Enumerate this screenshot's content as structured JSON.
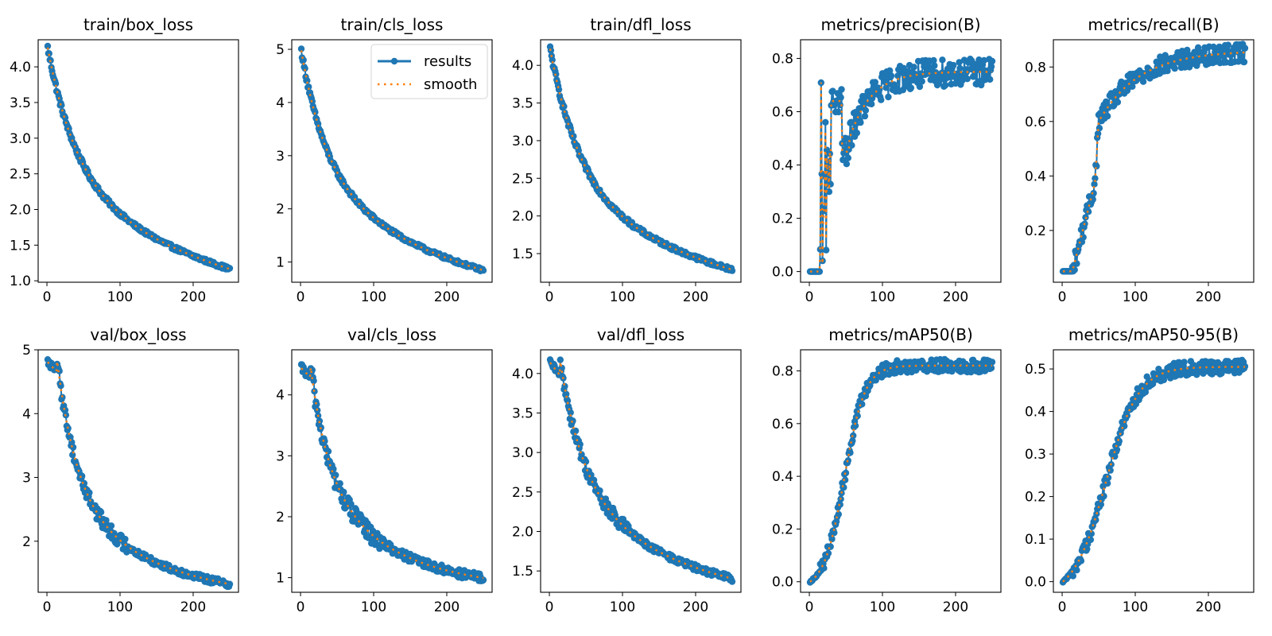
{
  "figure": {
    "rows": 2,
    "cols": 5
  },
  "colors": {
    "results": "#1f77b4",
    "smooth": "#ff7f0e",
    "axis": "#000000"
  },
  "legend": {
    "panel": 1,
    "placement": "upper-right",
    "entries": [
      {
        "label": "results",
        "style": "line-marker"
      },
      {
        "label": "smooth",
        "style": "dotted"
      }
    ]
  },
  "chart_data": [
    {
      "type": "line",
      "title": "train/box_loss",
      "xlabel": "",
      "ylabel": "",
      "xlim": [
        -12,
        262
      ],
      "ylim": [
        0.98,
        4.38
      ],
      "xticks": [
        0,
        100,
        200
      ],
      "xtick_labels": [
        "0",
        "100",
        "200"
      ],
      "yticks": [
        1.0,
        1.5,
        2.0,
        2.5,
        3.0,
        3.5,
        4.0
      ],
      "ytick_labels": [
        "1.0",
        "1.5",
        "2.0",
        "2.5",
        "3.0",
        "3.5",
        "4.0"
      ],
      "x_range": [
        1,
        250
      ],
      "curve": {
        "kind": "decay",
        "start": 4.27,
        "end": 1.16,
        "tau": 38,
        "noise": 0.04,
        "tail": 0.55
      },
      "series": [
        {
          "name": "results"
        },
        {
          "name": "smooth"
        }
      ]
    },
    {
      "type": "line",
      "title": "train/cls_loss",
      "xlabel": "",
      "ylabel": "",
      "xlim": [
        -12,
        262
      ],
      "ylim": [
        0.62,
        5.18
      ],
      "xticks": [
        0,
        100,
        200
      ],
      "xtick_labels": [
        "0",
        "100",
        "200"
      ],
      "yticks": [
        1,
        2,
        3,
        4,
        5
      ],
      "ytick_labels": [
        "1",
        "2",
        "3",
        "4",
        "5"
      ],
      "x_range": [
        1,
        250
      ],
      "curve": {
        "kind": "decay",
        "start": 4.98,
        "end": 0.84,
        "tau": 32,
        "noise": 0.05,
        "tail": 0.5
      },
      "series": [
        {
          "name": "results"
        },
        {
          "name": "smooth"
        }
      ]
    },
    {
      "type": "line",
      "title": "train/dfl_loss",
      "xlabel": "",
      "ylabel": "",
      "xlim": [
        -12,
        262
      ],
      "ylim": [
        1.12,
        4.34
      ],
      "xticks": [
        0,
        100,
        200
      ],
      "xtick_labels": [
        "0",
        "100",
        "200"
      ],
      "yticks": [
        1.5,
        2.0,
        2.5,
        3.0,
        3.5,
        4.0
      ],
      "ytick_labels": [
        "1.5",
        "2.0",
        "2.5",
        "3.0",
        "3.5",
        "4.0"
      ],
      "x_range": [
        1,
        250
      ],
      "curve": {
        "kind": "decay",
        "start": 4.22,
        "end": 1.28,
        "tau": 40,
        "noise": 0.04,
        "tail": 0.6
      },
      "series": [
        {
          "name": "results"
        },
        {
          "name": "smooth"
        }
      ]
    },
    {
      "type": "line",
      "title": "metrics/precision(B)",
      "xlabel": "",
      "ylabel": "",
      "xlim": [
        -12,
        262
      ],
      "ylim": [
        -0.04,
        0.87
      ],
      "xticks": [
        0,
        100,
        200
      ],
      "xtick_labels": [
        "0",
        "100",
        "200"
      ],
      "yticks": [
        0.0,
        0.2,
        0.4,
        0.6,
        0.8
      ],
      "ytick_labels": [
        "0.0",
        "0.2",
        "0.4",
        "0.6",
        "0.8"
      ],
      "x_range": [
        1,
        250
      ],
      "curve": {
        "kind": "precision",
        "plateau": 0.75,
        "noise": 0.04
      },
      "series": [
        {
          "name": "results"
        },
        {
          "name": "smooth"
        }
      ]
    },
    {
      "type": "line",
      "title": "metrics/recall(B)",
      "xlabel": "",
      "ylabel": "",
      "xlim": [
        -12,
        262
      ],
      "ylim": [
        0.01,
        0.9
      ],
      "xticks": [
        0,
        100,
        200
      ],
      "xtick_labels": [
        "0",
        "100",
        "200"
      ],
      "yticks": [
        0.2,
        0.4,
        0.6,
        0.8
      ],
      "ytick_labels": [
        "0.2",
        "0.4",
        "0.6",
        "0.8"
      ],
      "x_range": [
        1,
        250
      ],
      "curve": {
        "kind": "recall",
        "plateau": 0.86,
        "noise": 0.035
      },
      "series": [
        {
          "name": "results"
        },
        {
          "name": "smooth"
        }
      ]
    },
    {
      "type": "line",
      "title": "val/box_loss",
      "xlabel": "",
      "ylabel": "",
      "xlim": [
        -12,
        262
      ],
      "ylim": [
        1.2,
        5.0
      ],
      "xticks": [
        0,
        100,
        200
      ],
      "xtick_labels": [
        "0",
        "100",
        "200"
      ],
      "yticks": [
        2,
        3,
        4,
        5
      ],
      "ytick_labels": [
        "2",
        "3",
        "4",
        "5"
      ],
      "x_range": [
        1,
        250
      ],
      "curve": {
        "kind": "delayed-decay",
        "start": 4.82,
        "end": 1.3,
        "delay": 14,
        "tau": 26,
        "noise": 0.05,
        "tail": 0.55
      },
      "series": [
        {
          "name": "results"
        },
        {
          "name": "smooth"
        }
      ]
    },
    {
      "type": "line",
      "title": "val/cls_loss",
      "xlabel": "",
      "ylabel": "",
      "xlim": [
        -12,
        262
      ],
      "ylim": [
        0.76,
        4.74
      ],
      "xticks": [
        0,
        100,
        200
      ],
      "xtick_labels": [
        "0",
        "100",
        "200"
      ],
      "yticks": [
        1,
        2,
        3,
        4
      ],
      "ytick_labels": [
        "1",
        "2",
        "3",
        "4"
      ],
      "x_range": [
        1,
        250
      ],
      "curve": {
        "kind": "delayed-decay",
        "start": 4.45,
        "end": 0.97,
        "delay": 14,
        "tau": 22,
        "noise": 0.07,
        "tail": 0.45
      },
      "series": [
        {
          "name": "results"
        },
        {
          "name": "smooth"
        }
      ]
    },
    {
      "type": "line",
      "title": "val/dfl_loss",
      "xlabel": "",
      "ylabel": "",
      "xlim": [
        -12,
        262
      ],
      "ylim": [
        1.23,
        4.3
      ],
      "xticks": [
        0,
        100,
        200
      ],
      "xtick_labels": [
        "0",
        "100",
        "200"
      ],
      "yticks": [
        1.5,
        2.0,
        2.5,
        3.0,
        3.5,
        4.0
      ],
      "ytick_labels": [
        "1.5",
        "2.0",
        "2.5",
        "3.0",
        "3.5",
        "4.0"
      ],
      "x_range": [
        1,
        250
      ],
      "curve": {
        "kind": "delayed-decay",
        "start": 4.15,
        "end": 1.37,
        "delay": 15,
        "tau": 30,
        "noise": 0.04,
        "tail": 0.5
      },
      "series": [
        {
          "name": "results"
        },
        {
          "name": "smooth"
        }
      ]
    },
    {
      "type": "line",
      "title": "metrics/mAP50(B)",
      "xlabel": "",
      "ylabel": "",
      "xlim": [
        -12,
        262
      ],
      "ylim": [
        -0.04,
        0.88
      ],
      "xticks": [
        0,
        100,
        200
      ],
      "xtick_labels": [
        "0",
        "100",
        "200"
      ],
      "yticks": [
        0.0,
        0.2,
        0.4,
        0.6,
        0.8
      ],
      "ytick_labels": [
        "0.0",
        "0.2",
        "0.4",
        "0.6",
        "0.8"
      ],
      "x_range": [
        1,
        250
      ],
      "curve": {
        "kind": "sigmoid",
        "plateau": 0.82,
        "mid": 48,
        "width": 14,
        "noise": 0.025
      },
      "series": [
        {
          "name": "results"
        },
        {
          "name": "smooth"
        }
      ]
    },
    {
      "type": "line",
      "title": "metrics/mAP50-95(B)",
      "xlabel": "",
      "ylabel": "",
      "xlim": [
        -12,
        262
      ],
      "ylim": [
        -0.025,
        0.545
      ],
      "xticks": [
        0,
        100,
        200
      ],
      "xtick_labels": [
        "0",
        "100",
        "200"
      ],
      "yticks": [
        0.0,
        0.1,
        0.2,
        0.3,
        0.4,
        0.5
      ],
      "ytick_labels": [
        "0.0",
        "0.1",
        "0.2",
        "0.3",
        "0.4",
        "0.5"
      ],
      "x_range": [
        1,
        250
      ],
      "curve": {
        "kind": "sigmoid",
        "plateau": 0.505,
        "mid": 60,
        "width": 22,
        "noise": 0.017
      },
      "series": [
        {
          "name": "results"
        },
        {
          "name": "smooth"
        }
      ]
    }
  ]
}
